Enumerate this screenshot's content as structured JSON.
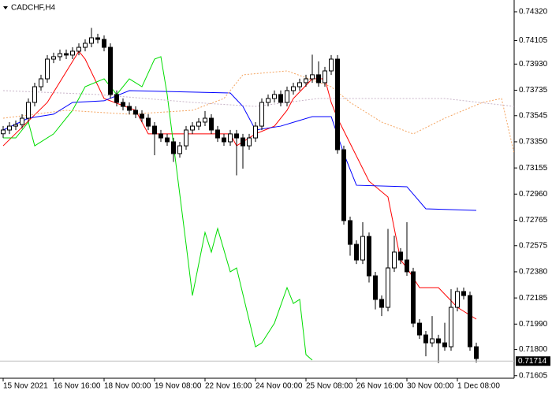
{
  "chart_data": {
    "type": "candlestick",
    "title": "CADCHF,H4",
    "categories": [
      "15 Nov 2021",
      null,
      null,
      null,
      null,
      null,
      null,
      null,
      "16 Nov 16:00",
      null,
      null,
      null,
      null,
      null,
      null,
      null,
      "18 Nov 00:00",
      null,
      null,
      null,
      null,
      null,
      null,
      null,
      "19 Nov 08:00",
      null,
      null,
      null,
      null,
      null,
      null,
      null,
      "22 Nov 16:00",
      null,
      null,
      null,
      null,
      null,
      null,
      null,
      "24 Nov 00:00",
      null,
      null,
      null,
      null,
      null,
      null,
      null,
      "25 Nov 08:00",
      null,
      null,
      null,
      null,
      null,
      null,
      null,
      "26 Nov 16:00",
      null,
      null,
      null,
      null,
      null,
      null,
      null,
      "30 Nov 00:00",
      null,
      null,
      null,
      null,
      null,
      null,
      null,
      "1 Dec 08:00",
      null,
      null,
      null,
      null,
      null,
      null,
      null,
      null,
      null
    ],
    "ohlc": {
      "open": [
        0.7341,
        0.73438,
        0.73467,
        0.73479,
        0.73526,
        0.73644,
        0.73761,
        0.7382,
        0.73967,
        0.73985,
        0.74008,
        0.73997,
        0.74026,
        0.74055,
        0.74085,
        0.74126,
        0.74114,
        0.74055,
        0.73703,
        0.73644,
        0.73614,
        0.73585,
        0.73556,
        0.73526,
        0.73467,
        0.73409,
        0.73379,
        0.7335,
        0.73262,
        0.7332,
        0.73438,
        0.73467,
        0.73497,
        0.73526,
        0.73438,
        0.73379,
        0.7335,
        0.73409,
        0.73379,
        0.7332,
        0.73379,
        0.73467,
        0.73644,
        0.73673,
        0.73703,
        0.73644,
        0.73732,
        0.73761,
        0.73791,
        0.7382,
        0.7385,
        0.73791,
        0.73879,
        0.73967,
        0.73291,
        0.72762,
        0.72585,
        0.72468,
        0.72644,
        0.7235,
        0.72174,
        0.72115,
        0.72409,
        0.72527,
        0.72468,
        0.7238,
        0.71997,
        0.71909,
        0.7185,
        0.7188,
        0.7185,
        0.71821,
        0.72115,
        0.72233,
        0.72203,
        0.71821
      ],
      "high": [
        0.73468,
        0.73497,
        0.73509,
        0.73556,
        0.73674,
        0.73791,
        0.7385,
        0.73997,
        0.74015,
        0.74038,
        0.74038,
        0.74056,
        0.74085,
        0.74115,
        0.742,
        0.74156,
        0.74144,
        0.74085,
        0.73733,
        0.73674,
        0.73644,
        0.73615,
        0.73586,
        0.73556,
        0.73497,
        0.73439,
        0.73409,
        0.7338,
        0.7335,
        0.73468,
        0.73497,
        0.73527,
        0.7358,
        0.73556,
        0.73468,
        0.73409,
        0.73439,
        0.73439,
        0.73409,
        0.73409,
        0.73497,
        0.73674,
        0.73703,
        0.73733,
        0.73733,
        0.73762,
        0.73791,
        0.73821,
        0.7385,
        0.74,
        0.7395,
        0.73909,
        0.73997,
        0.73997,
        0.73321,
        0.72792,
        0.72615,
        0.7275,
        0.72674,
        0.7238,
        0.72204,
        0.727,
        0.7265,
        0.72557,
        0.7275,
        0.7241,
        0.72027,
        0.71939,
        0.7205,
        0.7191,
        0.72,
        0.7225,
        0.72263,
        0.72263,
        0.72233,
        0.71851
      ],
      "low": [
        0.7338,
        0.73408,
        0.73437,
        0.73449,
        0.73496,
        0.73614,
        0.73731,
        0.7379,
        0.73937,
        0.73955,
        0.73967,
        0.73967,
        0.73996,
        0.74025,
        0.74055,
        0.74084,
        0.74025,
        0.73673,
        0.73614,
        0.73584,
        0.73555,
        0.73526,
        0.73496,
        0.73437,
        0.7325,
        0.73349,
        0.7332,
        0.732,
        0.73232,
        0.7329,
        0.73408,
        0.73437,
        0.73467,
        0.73408,
        0.73349,
        0.7332,
        0.7332,
        0.731,
        0.7315,
        0.7329,
        0.73349,
        0.73437,
        0.73614,
        0.73643,
        0.73614,
        0.73614,
        0.73702,
        0.73731,
        0.73761,
        0.7379,
        0.73761,
        0.73761,
        0.73849,
        0.73261,
        0.72732,
        0.725,
        0.72438,
        0.72438,
        0.723,
        0.721,
        0.7205,
        0.72085,
        0.72379,
        0.72438,
        0.7235,
        0.71967,
        0.71879,
        0.7175,
        0.7182,
        0.717,
        0.71791,
        0.71791,
        0.72085,
        0.72173,
        0.71791,
        0.71703
      ],
      "close": [
        0.73438,
        0.73467,
        0.73479,
        0.73526,
        0.73644,
        0.73761,
        0.7382,
        0.73967,
        0.73985,
        0.74008,
        0.73997,
        0.74026,
        0.74055,
        0.74085,
        0.74126,
        0.74114,
        0.74055,
        0.73703,
        0.73644,
        0.73614,
        0.73585,
        0.73556,
        0.73526,
        0.73467,
        0.73409,
        0.73379,
        0.7335,
        0.73262,
        0.7332,
        0.73438,
        0.73467,
        0.73497,
        0.73526,
        0.73438,
        0.73379,
        0.7335,
        0.73409,
        0.73379,
        0.7332,
        0.73379,
        0.73467,
        0.73644,
        0.73673,
        0.73703,
        0.73644,
        0.73732,
        0.73761,
        0.73791,
        0.7382,
        0.7385,
        0.73791,
        0.73879,
        0.73967,
        0.73291,
        0.72762,
        0.72585,
        0.72468,
        0.72644,
        0.7235,
        0.72174,
        0.72115,
        0.72409,
        0.72527,
        0.72468,
        0.7238,
        0.71997,
        0.71909,
        0.7185,
        0.7188,
        0.7185,
        0.71821,
        0.72115,
        0.72233,
        0.72203,
        0.71821,
        0.71733
      ]
    },
    "lines": [
      {
        "color": "#ff0000",
        "dash": false,
        "x": [
          0,
          7,
          12,
          13,
          16,
          21,
          23,
          36,
          37,
          40,
          43,
          45,
          46,
          49,
          51,
          52,
          53,
          58,
          61,
          63,
          64,
          66,
          69,
          72,
          75
        ],
        "values": [
          0.7332,
          0.73644,
          0.74026,
          0.73967,
          0.73673,
          0.73585,
          0.73409,
          0.73409,
          0.7332,
          0.73409,
          0.73467,
          0.73585,
          0.73673,
          0.7382,
          0.7382,
          0.73644,
          0.73526,
          0.73056,
          0.72938,
          0.72468,
          0.72409,
          0.72262,
          0.72262,
          0.72115,
          0.72027
        ]
      },
      {
        "color": "#0000ff",
        "dash": false,
        "x": [
          0,
          4,
          8,
          11,
          16,
          20,
          36,
          38,
          40,
          44,
          49,
          52,
          54,
          56,
          64,
          67,
          75
        ],
        "values": [
          0.73438,
          0.73526,
          0.73556,
          0.73644,
          0.73656,
          0.73732,
          0.73714,
          0.73614,
          0.73438,
          0.73467,
          0.73538,
          0.73538,
          0.73262,
          0.73026,
          0.73015,
          0.7285,
          0.72838
        ]
      },
      {
        "color": "#00dd00",
        "dash": false,
        "x": [
          0,
          2,
          4,
          5,
          8,
          11,
          13,
          16,
          18,
          20,
          22,
          24,
          25,
          26,
          29,
          30,
          32,
          33,
          34,
          36,
          37,
          40,
          41,
          43,
          45,
          46,
          47,
          48,
          49
        ],
        "values": [
          0.73379,
          0.73379,
          0.73497,
          0.7332,
          0.73409,
          0.73585,
          0.73761,
          0.7382,
          0.73703,
          0.7382,
          0.73761,
          0.73967,
          0.73985,
          0.73703,
          0.72585,
          0.72203,
          0.72674,
          0.72527,
          0.72703,
          0.7238,
          0.72409,
          0.71821,
          0.7185,
          0.71997,
          0.72262,
          0.72144,
          0.72174,
          0.71762,
          0.71721
        ]
      },
      {
        "color": "#f4a460",
        "dash": true,
        "x": [
          0,
          10,
          20,
          30,
          35,
          38,
          45,
          52,
          55,
          60,
          65,
          70,
          76,
          79,
          81
        ],
        "values": [
          0.73526,
          0.73585,
          0.73556,
          0.73585,
          0.73673,
          0.7385,
          0.73879,
          0.73761,
          0.73644,
          0.73497,
          0.73409,
          0.73526,
          0.73644,
          0.73673,
          0.73262
        ]
      },
      {
        "color": "#c8b4c8",
        "dash": true,
        "x": [
          0,
          15,
          30,
          40,
          50,
          55,
          70,
          81
        ],
        "values": [
          0.73732,
          0.73703,
          0.73644,
          0.73614,
          0.73673,
          0.73673,
          0.73673,
          0.73614
        ]
      }
    ],
    "last_price": 0.71714,
    "ylim": [
      0.71586,
      0.74408
    ],
    "yticks": [
      {
        "value": 0.7432,
        "label": "0.74320"
      },
      0.74105,
      {
        "value": 0.7393,
        "label": "0.73930"
      },
      0.73735,
      0.73545,
      {
        "value": 0.7335,
        "label": "0.73350"
      },
      0.73155,
      {
        "value": 0.7296,
        "label": "0.72960"
      },
      0.72765,
      0.72575,
      {
        "value": 0.7238,
        "label": "0.72380"
      },
      0.72185,
      {
        "value": 0.7199,
        "label": "0.71990"
      },
      {
        "value": 0.718,
        "label": "0.71800"
      },
      0.71605
    ]
  }
}
